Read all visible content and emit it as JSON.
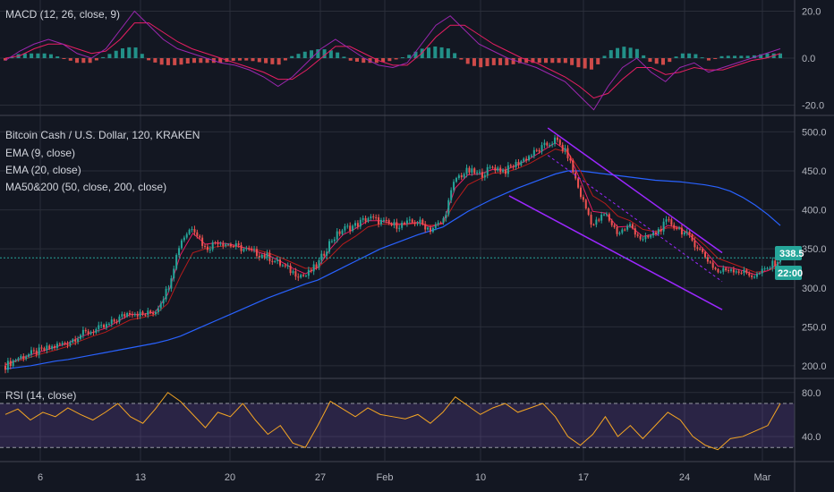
{
  "colors": {
    "background": "#131722",
    "grid": "#2a2e39",
    "pane_border": "#434651",
    "text": "#d1d4dc",
    "candle_up": "#26a69a",
    "candle_down": "#ef5350",
    "ema9": "#e91e63",
    "ema20": "#b71c1c",
    "ma50": "#e53935",
    "ma200": "#2962ff",
    "macd_line": "#9c27b0",
    "signal_line": "#e91e63",
    "rsi_line": "#f5a623",
    "rsi_band": "#7e57c2",
    "channel": "#9c27ff",
    "current_price": "#26a69a"
  },
  "labels": {
    "macd": "MACD (12, 26, close, 9)",
    "symbol": "Bitcoin Cash / U.S. Dollar, 120, KRAKEN",
    "ema9": "EMA (9, close)",
    "ema20": "EMA (20, close)",
    "ma": "MA50&200 (50, close, 200, close)",
    "rsi": "RSI (14, close)"
  },
  "current_price": {
    "value": "338.5",
    "countdown": "22:00"
  },
  "chart_data": [
    {
      "type": "line",
      "name": "MACD",
      "x_ticks": [
        "6",
        "13",
        "20",
        "27",
        "Feb",
        "10",
        "17",
        "24",
        "Mar"
      ],
      "y_ticks": [
        20.0,
        0.0,
        -20.0
      ],
      "ylim": [
        -24,
        24
      ],
      "macd": [
        -1,
        3,
        6,
        8,
        6,
        2,
        0,
        4,
        12,
        20,
        14,
        8,
        4,
        2,
        0,
        -2,
        -3,
        -5,
        -8,
        -12,
        -8,
        -2,
        4,
        8,
        4,
        0,
        -3,
        -4,
        -2,
        6,
        14,
        18,
        12,
        6,
        3,
        0,
        -2,
        -4,
        -7,
        -10,
        -16,
        -22,
        -12,
        -4,
        0,
        -6,
        -10,
        -4,
        -2,
        -6,
        -4,
        -2,
        0,
        2,
        4
      ],
      "signal": [
        0,
        1,
        4,
        6,
        6,
        4,
        2,
        3,
        8,
        15,
        15,
        11,
        7,
        4,
        2,
        0,
        -2,
        -4,
        -6,
        -9,
        -9,
        -5,
        0,
        5,
        5,
        2,
        -1,
        -3,
        -3,
        2,
        9,
        14,
        14,
        10,
        6,
        3,
        0,
        -2,
        -5,
        -8,
        -12,
        -17,
        -15,
        -9,
        -4,
        -4,
        -7,
        -6,
        -4,
        -5,
        -5,
        -3,
        -1,
        0,
        2
      ]
    },
    {
      "type": "line",
      "name": "Bitcoin Cash / U.S. Dollar",
      "x_ticks": [
        "6",
        "13",
        "20",
        "27",
        "Feb",
        "10",
        "17",
        "24",
        "Mar"
      ],
      "y_ticks": [
        200.0,
        250.0,
        300.0,
        350.0,
        400.0,
        450.0,
        500.0
      ],
      "ylim": [
        185,
        520
      ],
      "close": [
        200,
        210,
        215,
        220,
        225,
        230,
        240,
        245,
        250,
        260,
        270,
        265,
        270,
        300,
        360,
        380,
        350,
        360,
        355,
        350,
        345,
        340,
        330,
        320,
        315,
        330,
        360,
        375,
        380,
        390,
        385,
        380,
        382,
        385,
        375,
        385,
        440,
        450,
        445,
        455,
        450,
        460,
        470,
        480,
        490,
        470,
        420,
        380,
        395,
        370,
        380,
        360,
        370,
        385,
        375,
        360,
        340,
        320,
        325,
        320,
        315,
        325,
        338
      ],
      "ema9": [
        201,
        208,
        214,
        219,
        224,
        229,
        237,
        243,
        248,
        257,
        266,
        266,
        269,
        292,
        342,
        370,
        356,
        358,
        356,
        352,
        347,
        342,
        334,
        325,
        318,
        326,
        350,
        368,
        376,
        386,
        386,
        382,
        382,
        384,
        378,
        383,
        428,
        445,
        446,
        452,
        451,
        458,
        466,
        476,
        486,
        475,
        438,
        398,
        396,
        378,
        379,
        366,
        369,
        380,
        377,
        364,
        347,
        328,
        326,
        322,
        317,
        322,
        333
      ],
      "ema20": [
        202,
        206,
        211,
        216,
        220,
        225,
        232,
        238,
        243,
        251,
        259,
        262,
        266,
        280,
        315,
        345,
        350,
        353,
        354,
        352,
        349,
        345,
        339,
        332,
        325,
        326,
        340,
        356,
        366,
        378,
        382,
        381,
        381,
        383,
        380,
        382,
        410,
        432,
        440,
        447,
        448,
        453,
        460,
        469,
        478,
        474,
        450,
        418,
        408,
        392,
        386,
        375,
        372,
        377,
        376,
        368,
        354,
        338,
        332,
        326,
        320,
        322,
        328
      ],
      "ma200": [
        196,
        198,
        200,
        203,
        206,
        208,
        211,
        214,
        217,
        220,
        223,
        226,
        229,
        233,
        238,
        245,
        252,
        259,
        266,
        273,
        280,
        287,
        293,
        299,
        305,
        310,
        318,
        326,
        334,
        342,
        350,
        356,
        362,
        368,
        373,
        378,
        388,
        398,
        406,
        414,
        421,
        428,
        434,
        440,
        446,
        450,
        450,
        448,
        446,
        444,
        442,
        440,
        438,
        437,
        436,
        434,
        432,
        429,
        424,
        416,
        406,
        394,
        380
      ],
      "channel_upper": [
        [
          14,
          505
        ],
        [
          18.5,
          345
        ]
      ],
      "channel_lower": [
        [
          13,
          418
        ],
        [
          18.5,
          272
        ]
      ],
      "channel_middle": [
        [
          14,
          470
        ],
        [
          18.5,
          308
        ]
      ]
    },
    {
      "type": "line",
      "name": "RSI",
      "x_ticks": [
        "6",
        "13",
        "20",
        "27",
        "Feb",
        "10",
        "17",
        "24",
        "Mar"
      ],
      "y_ticks": [
        80.0,
        40.0
      ],
      "ylim": [
        18,
        92
      ],
      "bands": [
        70,
        30
      ],
      "values": [
        60,
        65,
        55,
        62,
        58,
        66,
        60,
        55,
        62,
        70,
        58,
        52,
        65,
        80,
        72,
        60,
        48,
        62,
        58,
        70,
        55,
        42,
        50,
        34,
        30,
        50,
        72,
        65,
        58,
        66,
        60,
        58,
        56,
        60,
        52,
        62,
        76,
        68,
        60,
        66,
        70,
        62,
        66,
        70,
        58,
        40,
        32,
        42,
        58,
        40,
        50,
        38,
        50,
        62,
        55,
        40,
        32,
        28,
        38,
        40,
        45,
        50,
        70
      ]
    }
  ]
}
